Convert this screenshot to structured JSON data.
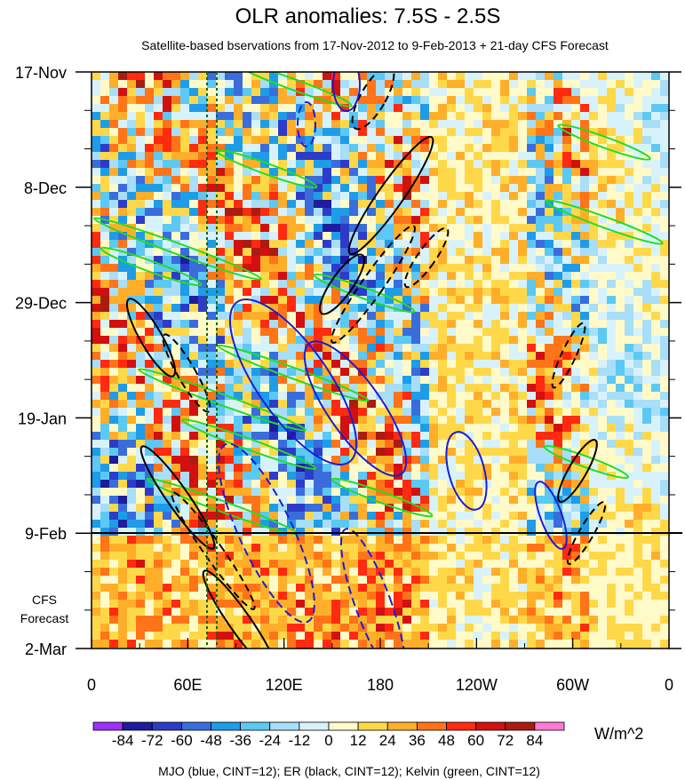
{
  "chart_data": {
    "type": "heatmap",
    "title": "OLR anomalies: 7.5S - 2.5S",
    "subtitle": "Satellite-based bservations from 17-Nov-2012 to 9-Feb-2013 + 21-day CFS Forecast",
    "x_tick_labels": [
      "0",
      "60E",
      "120E",
      "180",
      "120W",
      "60W",
      "0"
    ],
    "y_tick_labels": [
      "17-Nov",
      "8-Dec",
      "29-Dec",
      "19-Jan",
      "9-Feb",
      "2-Mar"
    ],
    "forecast_label": [
      "CFS",
      "Forecast"
    ],
    "forecast_start": "9-Feb",
    "colorbar": {
      "unit": "W/m^2",
      "levels": [
        "-84",
        "-72",
        "-60",
        "-48",
        "-36",
        "-24",
        "-12",
        "0",
        "12",
        "24",
        "36",
        "48",
        "60",
        "72",
        "84"
      ],
      "colors": [
        "#9b30ff",
        "#1c1c9c",
        "#2c3cc8",
        "#3a6cdc",
        "#1e9ce8",
        "#5cc8f4",
        "#a8def8",
        "#d8f2fc",
        "#fffac8",
        "#ffd84a",
        "#ffae2a",
        "#ff7418",
        "#ff2a10",
        "#d21010",
        "#aa1c10",
        "#ff7ad0"
      ]
    },
    "legend_text": "MJO (blue, CINT=12); ER (black, CINT=12); Kelvin (green, CINT=12)",
    "overlay_colors": {
      "MJO": "#1c1cd8",
      "ER": "#000000",
      "Kelvin": "#22dd22"
    }
  }
}
